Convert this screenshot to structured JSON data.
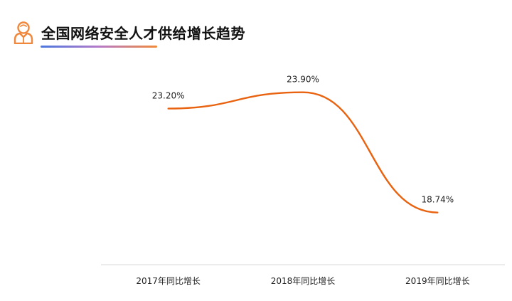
{
  "header": {
    "title": "全国网络安全人才供给增长趋势",
    "icon": "person-icon"
  },
  "colors": {
    "line": "#e8620f",
    "icon": "#f0873a",
    "axis": "#d9d9d9",
    "text": "#222222"
  },
  "chart_data": {
    "type": "line",
    "categories": [
      "2017年同比增长",
      "2018年同比增长",
      "2019年同比增长"
    ],
    "series": [
      {
        "values": [
          23.2,
          23.9,
          18.74
        ]
      }
    ],
    "data_labels": [
      "23.20%",
      "23.90%",
      "18.74%"
    ],
    "title": "全国网络安全人才供给增长趋势",
    "xlabel": "",
    "ylabel": "",
    "ylim": [
      16.5,
      24.5
    ],
    "grid": false,
    "legend": "none",
    "smooth": true
  }
}
